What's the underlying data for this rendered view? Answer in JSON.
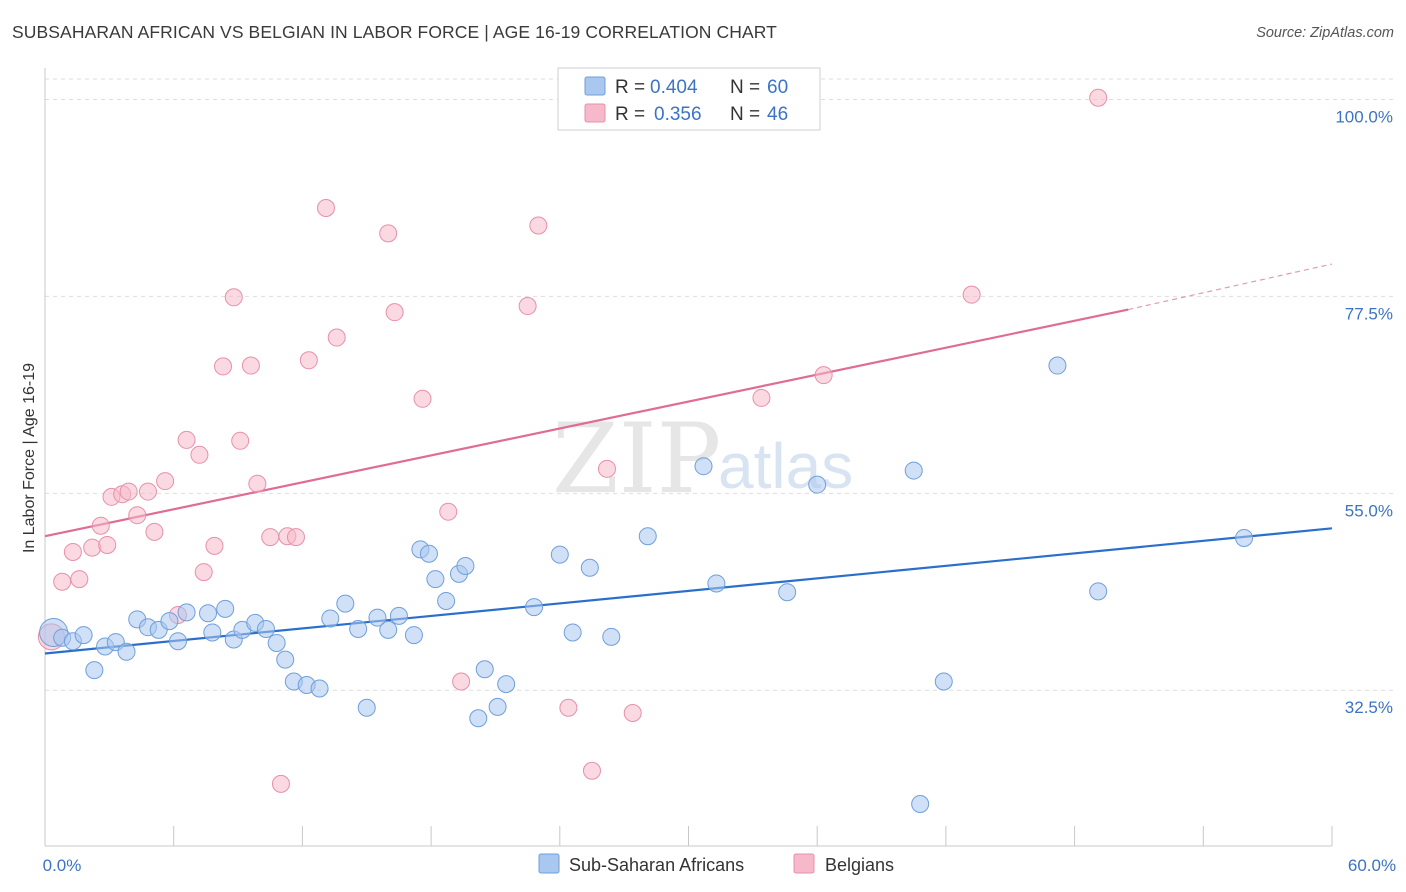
{
  "header": {
    "title": "SUBSAHARAN AFRICAN VS BELGIAN IN LABOR FORCE | AGE 16-19 CORRELATION CHART",
    "source": "Source: ZipAtlas.com"
  },
  "watermark": {
    "zip": "ZIP",
    "atlas": "atlas"
  },
  "legend": {
    "rows": [
      {
        "r_label": "R =",
        "r_value": "0.404",
        "n_label": "N =",
        "n_value": "60",
        "color": "#a9c7ef"
      },
      {
        "r_label": "R =",
        "r_value": "0.356",
        "n_label": "N =",
        "n_value": "46",
        "color": "#f6b9cb"
      }
    ]
  },
  "bottom_legend": [
    {
      "label": "Sub-Saharan Africans",
      "color": "#a9c7ef"
    },
    {
      "label": "Belgians",
      "color": "#f6b9cb"
    }
  ],
  "colors": {
    "blue_fill": "#a9c7ef",
    "blue_stroke": "#6f9fdb",
    "blue_line": "#2a6fcc",
    "pink_fill": "#f6b9cb",
    "pink_stroke": "#e88fa9",
    "pink_line": "#e06c93",
    "tick_text": "#3d73c5",
    "grid": "#dddddd"
  },
  "chart_data": {
    "type": "scatter",
    "title": "SUBSAHARAN AFRICAN VS BELGIAN IN LABOR FORCE | AGE 16-19 CORRELATION CHART",
    "xlabel": "",
    "ylabel": "In Labor Force | Age 16-19",
    "xlim": [
      0,
      60
    ],
    "ylim": [
      14.7,
      103.6
    ],
    "x_tick_labels": [
      "0.0%",
      "60.0%"
    ],
    "y_ticks": [
      32.5,
      55.0,
      77.5,
      100.0
    ],
    "y_tick_labels": [
      "32.5%",
      "55.0%",
      "77.5%",
      "100.0%"
    ],
    "grid": true,
    "legend_position": "top-center",
    "series": [
      {
        "name": "Sub-Saharan Africans",
        "r": 0.404,
        "n": 60,
        "trend": {
          "x": [
            0,
            60
          ],
          "y": [
            36.7,
            51.0
          ]
        },
        "points": [
          [
            0.4,
            39.1
          ],
          [
            0.8,
            38.5
          ],
          [
            1.3,
            38.1
          ],
          [
            1.8,
            38.8
          ],
          [
            2.3,
            34.8
          ],
          [
            2.8,
            37.5
          ],
          [
            3.3,
            38.0
          ],
          [
            3.8,
            36.9
          ],
          [
            4.3,
            40.6
          ],
          [
            4.8,
            39.7
          ],
          [
            5.3,
            39.4
          ],
          [
            5.8,
            40.4
          ],
          [
            6.2,
            38.1
          ],
          [
            6.6,
            41.4
          ],
          [
            7.6,
            41.3
          ],
          [
            7.8,
            39.1
          ],
          [
            8.4,
            41.8
          ],
          [
            8.8,
            38.3
          ],
          [
            9.2,
            39.4
          ],
          [
            9.8,
            40.2
          ],
          [
            10.3,
            39.5
          ],
          [
            10.8,
            37.9
          ],
          [
            11.2,
            36.0
          ],
          [
            11.6,
            33.5
          ],
          [
            12.2,
            33.1
          ],
          [
            12.8,
            32.7
          ],
          [
            13.3,
            40.7
          ],
          [
            14.0,
            42.4
          ],
          [
            14.6,
            39.5
          ],
          [
            15.0,
            30.5
          ],
          [
            15.5,
            40.8
          ],
          [
            16.0,
            39.4
          ],
          [
            16.5,
            41.0
          ],
          [
            17.2,
            38.8
          ],
          [
            17.5,
            48.6
          ],
          [
            17.9,
            48.1
          ],
          [
            18.2,
            45.2
          ],
          [
            18.7,
            42.7
          ],
          [
            19.3,
            45.8
          ],
          [
            19.6,
            46.7
          ],
          [
            20.2,
            29.3
          ],
          [
            20.5,
            34.9
          ],
          [
            21.1,
            30.6
          ],
          [
            21.5,
            33.2
          ],
          [
            22.8,
            42.0
          ],
          [
            24.0,
            48.0
          ],
          [
            24.6,
            39.1
          ],
          [
            25.4,
            46.5
          ],
          [
            26.4,
            38.6
          ],
          [
            28.1,
            50.1
          ],
          [
            30.7,
            58.1
          ],
          [
            31.3,
            44.7
          ],
          [
            34.6,
            43.7
          ],
          [
            36.0,
            56.0
          ],
          [
            40.5,
            57.6
          ],
          [
            40.8,
            19.5
          ],
          [
            41.9,
            33.5
          ],
          [
            47.2,
            69.6
          ],
          [
            49.1,
            43.8
          ],
          [
            55.9,
            49.9
          ]
        ]
      },
      {
        "name": "Belgians",
        "r": 0.356,
        "n": 46,
        "trend": {
          "x": [
            0,
            50.5
          ],
          "y": [
            50.1,
            76.0
          ]
        },
        "trend_dashed": {
          "x": [
            50.5,
            60
          ],
          "y": [
            76.0,
            81.2
          ]
        },
        "points": [
          [
            0.3,
            38.6
          ],
          [
            0.8,
            44.9
          ],
          [
            1.3,
            48.3
          ],
          [
            1.6,
            45.2
          ],
          [
            2.2,
            48.8
          ],
          [
            2.6,
            51.3
          ],
          [
            2.9,
            49.1
          ],
          [
            3.1,
            54.6
          ],
          [
            3.6,
            54.9
          ],
          [
            3.9,
            55.2
          ],
          [
            4.3,
            52.5
          ],
          [
            4.8,
            55.2
          ],
          [
            5.1,
            50.6
          ],
          [
            5.6,
            56.4
          ],
          [
            6.2,
            41.1
          ],
          [
            6.6,
            61.1
          ],
          [
            7.2,
            59.4
          ],
          [
            7.4,
            46.0
          ],
          [
            7.9,
            49.0
          ],
          [
            8.3,
            69.5
          ],
          [
            8.8,
            77.4
          ],
          [
            9.1,
            61.0
          ],
          [
            9.6,
            69.6
          ],
          [
            9.9,
            56.1
          ],
          [
            10.5,
            50.0
          ],
          [
            11.0,
            21.8
          ],
          [
            11.3,
            50.1
          ],
          [
            11.7,
            50.0
          ],
          [
            12.3,
            70.2
          ],
          [
            13.1,
            87.6
          ],
          [
            13.6,
            72.8
          ],
          [
            16.0,
            84.7
          ],
          [
            16.3,
            75.7
          ],
          [
            17.6,
            65.8
          ],
          [
            18.8,
            52.9
          ],
          [
            19.4,
            33.5
          ],
          [
            22.5,
            76.4
          ],
          [
            23.0,
            85.6
          ],
          [
            24.4,
            30.5
          ],
          [
            25.5,
            23.3
          ],
          [
            26.2,
            57.8
          ],
          [
            27.4,
            29.9
          ],
          [
            33.4,
            65.9
          ],
          [
            36.3,
            68.5
          ],
          [
            43.2,
            77.7
          ],
          [
            49.1,
            100.2
          ]
        ]
      }
    ]
  }
}
